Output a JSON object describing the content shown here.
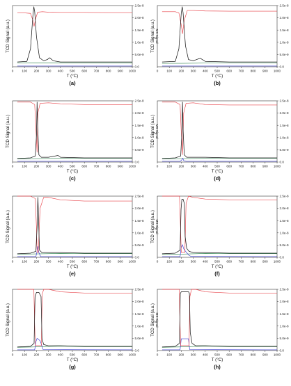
{
  "figure": {
    "panel_labels": [
      "(a)",
      "(b)",
      "(c)",
      "(d)",
      "(e)",
      "(f)",
      "(g)",
      "(h)"
    ]
  },
  "colors": {
    "tcd": "#1a1a1a",
    "ms_red": "#e8434a",
    "ms_green": "#3c8a5a",
    "ms_blue": "#3a3ad0",
    "axis": "#333333"
  },
  "chart_data": [
    {
      "panel": "(a)",
      "type": "line",
      "xlabel": "T (°C)",
      "ylabel": "TCD Signal (a.u.)",
      "y2label": "MS Signal",
      "xlim": [
        0,
        1000
      ],
      "y2lim": [
        0,
        2.5e-08
      ],
      "xticks": [
        "0",
        "100",
        "200",
        "300",
        "400",
        "500",
        "600",
        "700",
        "800",
        "900",
        "1000"
      ],
      "y2ticks": [
        "0.0",
        "5.0e-9",
        "1.0e-8",
        "1.5e-8",
        "2.0e-8",
        "2.5e-8"
      ],
      "series": [
        {
          "role": "TCD",
          "x": [
            40,
            120,
            150,
            170,
            178,
            185,
            200,
            225,
            260,
            290,
            310,
            340,
            400,
            600,
            800,
            1000
          ],
          "y": [
            0.08,
            0.09,
            0.3,
            0.85,
            1.0,
            0.92,
            0.5,
            0.15,
            0.1,
            0.12,
            0.15,
            0.1,
            0.08,
            0.08,
            0.08,
            0.08
          ]
        },
        {
          "role": "MS red",
          "x": [
            40,
            100,
            150,
            170,
            180,
            195,
            210,
            250,
            300,
            400,
            600,
            800,
            1000
          ],
          "y": [
            2.2e-08,
            2.2e-08,
            2.18e-08,
            1.9e-08,
            1.65e-08,
            2e-08,
            2.23e-08,
            2.25e-08,
            2.23e-08,
            2.22e-08,
            2.22e-08,
            2.21e-08,
            2.21e-08
          ]
        },
        {
          "role": "MS green",
          "x": [
            40,
            200,
            400,
            600,
            800,
            1000
          ],
          "y": [
            1.5e-09,
            1.6e-09,
            1.6e-09,
            1.6e-09,
            1.6e-09,
            1.6e-09
          ]
        },
        {
          "role": "MS blue",
          "x": [
            40,
            1000
          ],
          "y": [
            3e-10,
            3e-10
          ]
        }
      ]
    },
    {
      "panel": "(b)",
      "type": "line",
      "xlabel": "T (°C)",
      "ylabel": "TCD Signal (a.u.)",
      "y2label": "MS Signal",
      "xlim": [
        0,
        1000
      ],
      "y2lim": [
        0,
        2.5e-08
      ],
      "xticks": [
        "0",
        "100",
        "200",
        "300",
        "400",
        "500",
        "600",
        "700",
        "800",
        "900",
        "1000"
      ],
      "y2ticks": [
        "0.0",
        "5.0e-9",
        "1.0e-8",
        "1.5e-8",
        "2.0e-8",
        "2.5e-8"
      ],
      "series": [
        {
          "role": "TCD",
          "x": [
            40,
            150,
            180,
            200,
            208,
            215,
            235,
            260,
            300,
            340,
            360,
            400,
            600,
            800,
            1000
          ],
          "y": [
            0.08,
            0.09,
            0.3,
            0.9,
            1.0,
            0.9,
            0.35,
            0.12,
            0.1,
            0.13,
            0.14,
            0.09,
            0.08,
            0.08,
            0.08
          ]
        },
        {
          "role": "MS red",
          "x": [
            40,
            150,
            180,
            200,
            210,
            225,
            250,
            300,
            400,
            600,
            800,
            1000
          ],
          "y": [
            2.25e-08,
            2.25e-08,
            2.2e-08,
            1.7e-08,
            1.35e-08,
            1.9e-08,
            2.3e-08,
            2.3e-08,
            2.28e-08,
            2.27e-08,
            2.27e-08,
            2.27e-08
          ]
        },
        {
          "role": "MS green",
          "x": [
            40,
            200,
            400,
            600,
            800,
            1000
          ],
          "y": [
            1.4e-09,
            1.4e-09,
            1.5e-09,
            1.5e-09,
            1.5e-09,
            1.5e-09
          ]
        },
        {
          "role": "MS blue",
          "x": [
            40,
            1000
          ],
          "y": [
            3e-10,
            3e-10
          ]
        }
      ]
    },
    {
      "panel": "(c)",
      "type": "line",
      "xlabel": "T (°C)",
      "ylabel": "TCD Signal (a.u.)",
      "y2label": "MS Signal",
      "xlim": [
        0,
        1000
      ],
      "y2lim": [
        0,
        2.5e-08
      ],
      "xticks": [
        "0",
        "100",
        "200",
        "300",
        "400",
        "500",
        "600",
        "700",
        "800",
        "900",
        "1000"
      ],
      "y2ticks": [
        "0.0",
        "5.0e-9",
        "1.0e-8",
        "1.5e-8",
        "2.0e-8",
        "2.5e-8"
      ],
      "series": [
        {
          "role": "TCD",
          "x": [
            40,
            150,
            190,
            200,
            205,
            210,
            220,
            240,
            300,
            380,
            400,
            600,
            800,
            1000
          ],
          "y": [
            0.06,
            0.07,
            0.1,
            0.45,
            1.0,
            0.6,
            0.12,
            0.08,
            0.08,
            0.11,
            0.08,
            0.07,
            0.07,
            0.07
          ]
        },
        {
          "role": "MS red",
          "x": [
            40,
            150,
            185,
            200,
            205,
            212,
            230,
            300,
            400,
            600,
            800,
            1000
          ],
          "y": [
            2.45e-08,
            2.45e-08,
            2.35e-08,
            9e-09,
            4e-09,
            2e-08,
            2.4e-08,
            2.42e-08,
            2.38e-08,
            2.35e-08,
            2.35e-08,
            2.35e-08
          ]
        },
        {
          "role": "MS green",
          "x": [
            40,
            200,
            400,
            600,
            800,
            1000
          ],
          "y": [
            1.3e-09,
            1.4e-09,
            1.5e-09,
            1.5e-09,
            1.5e-09,
            1.5e-09
          ]
        },
        {
          "role": "MS blue",
          "x": [
            40,
            1000
          ],
          "y": [
            3e-10,
            3e-10
          ]
        }
      ]
    },
    {
      "panel": "(d)",
      "type": "line",
      "xlabel": "T (°C)",
      "ylabel": "TCD Signal (a.u.)",
      "y2label": "MS Signal",
      "xlim": [
        0,
        1000
      ],
      "y2lim": [
        0,
        2.5e-08
      ],
      "xticks": [
        "0",
        "100",
        "200",
        "300",
        "400",
        "500",
        "600",
        "700",
        "800",
        "900",
        "1000"
      ],
      "y2ticks": [
        "0.0",
        "5.0e-9",
        "1.0e-8",
        "1.5e-8",
        "2.0e-8",
        "2.5e-8"
      ],
      "series": [
        {
          "role": "TCD",
          "x": [
            40,
            150,
            195,
            205,
            210,
            215,
            225,
            245,
            300,
            400,
            600,
            800,
            1000
          ],
          "y": [
            0.06,
            0.07,
            0.1,
            0.5,
            1.0,
            0.55,
            0.12,
            0.08,
            0.08,
            0.08,
            0.07,
            0.07,
            0.07
          ]
        },
        {
          "role": "MS red",
          "x": [
            40,
            150,
            190,
            200,
            210,
            220,
            240,
            300,
            400,
            600,
            800,
            1000
          ],
          "y": [
            2.45e-08,
            2.45e-08,
            2.35e-08,
            1.2e-08,
            3e-09,
            2e-08,
            2.4e-08,
            2.42e-08,
            2.35e-08,
            2.33e-08,
            2.33e-08,
            2.33e-08
          ]
        },
        {
          "role": "MS green",
          "x": [
            40,
            200,
            400,
            600,
            800,
            1000
          ],
          "y": [
            1.3e-09,
            1.4e-09,
            1.5e-09,
            1.5e-09,
            1.5e-09,
            1.5e-09
          ]
        },
        {
          "role": "MS blue",
          "x": [
            40,
            190,
            205,
            212,
            220,
            240,
            1000
          ],
          "y": [
            3e-10,
            3e-10,
            9e-10,
            1.6e-09,
            6e-10,
            3e-10,
            3e-10
          ]
        }
      ]
    },
    {
      "panel": "(e)",
      "type": "line",
      "xlabel": "T (°C)",
      "ylabel": "TCD Signal (a.u.)",
      "y2label": "MS Signal",
      "xlim": [
        0,
        1000
      ],
      "y2lim": [
        0,
        2.5e-08
      ],
      "xticks": [
        "0",
        "100",
        "200",
        "300",
        "400",
        "500",
        "600",
        "700",
        "800",
        "900",
        "1000"
      ],
      "y2ticks": [
        "0.0",
        "5.0e-9",
        "1.0e-8",
        "1.5e-8",
        "2.0e-8",
        "2.5e-8"
      ],
      "series": [
        {
          "role": "TCD",
          "x": [
            40,
            150,
            195,
            205,
            212,
            218,
            225,
            245,
            300,
            400,
            600,
            800,
            1000
          ],
          "y": [
            0.06,
            0.07,
            0.1,
            0.5,
            1.0,
            0.6,
            0.12,
            0.08,
            0.08,
            0.08,
            0.07,
            0.07,
            0.07
          ]
        },
        {
          "role": "MS red",
          "x": [
            40,
            150,
            190,
            200,
            205,
            215,
            230,
            260,
            300,
            400,
            600,
            800,
            1000
          ],
          "y": [
            2.5e-08,
            2.5e-08,
            2.4e-08,
            1.2e-08,
            2e-09,
            2e-09,
            2e-08,
            2.45e-08,
            2.45e-08,
            2.35e-08,
            2.3e-08,
            2.3e-08,
            2.3e-08
          ]
        },
        {
          "role": "MS green",
          "x": [
            40,
            200,
            400,
            600,
            800,
            1000
          ],
          "y": [
            1.3e-09,
            1.4e-09,
            1.6e-09,
            1.5e-09,
            1.5e-09,
            1.5e-09
          ]
        },
        {
          "role": "MS blue",
          "x": [
            40,
            195,
            205,
            212,
            220,
            235,
            1000
          ],
          "y": [
            3e-10,
            3e-10,
            2.5e-09,
            4.5e-09,
            2e-09,
            3e-10,
            3e-10
          ]
        }
      ]
    },
    {
      "panel": "(f)",
      "type": "line",
      "xlabel": "T (°C)",
      "ylabel": "TCD Signal (a.u.)",
      "y2label": "MS Signal",
      "xlim": [
        0,
        1000
      ],
      "y2lim": [
        0,
        2.5e-08
      ],
      "xticks": [
        "0",
        "100",
        "200",
        "300",
        "400",
        "500",
        "600",
        "700",
        "800",
        "900",
        "1000"
      ],
      "y2ticks": [
        "0.0",
        "5.0e-9",
        "1.0e-8",
        "1.5e-8",
        "2.0e-8",
        "2.5e-8"
      ],
      "series": [
        {
          "role": "TCD",
          "x": [
            40,
            150,
            190,
            198,
            205,
            215,
            225,
            232,
            245,
            265,
            300,
            400,
            600,
            800,
            1000
          ],
          "y": [
            0.06,
            0.07,
            0.12,
            0.8,
            0.97,
            0.97,
            0.9,
            0.35,
            0.15,
            0.1,
            0.08,
            0.08,
            0.07,
            0.07,
            0.07
          ]
        },
        {
          "role": "MS red",
          "x": [
            40,
            150,
            185,
            195,
            200,
            230,
            240,
            260,
            300,
            400,
            600,
            800,
            1000
          ],
          "y": [
            2.6e-08,
            2.6e-08,
            2.5e-08,
            1e-08,
            2e-09,
            2e-09,
            2.2e-08,
            2.5e-08,
            2.45e-08,
            2.38e-08,
            2.35e-08,
            2.35e-08,
            2.35e-08
          ]
        },
        {
          "role": "MS green",
          "x": [
            40,
            200,
            400,
            600,
            800,
            1000
          ],
          "y": [
            1.2e-09,
            1.3e-09,
            1.6e-09,
            1.5e-09,
            1.5e-09,
            1.5e-09
          ]
        },
        {
          "role": "MS blue",
          "x": [
            40,
            190,
            200,
            210,
            220,
            240,
            260,
            280,
            1000
          ],
          "y": [
            3e-10,
            3e-10,
            4e-09,
            5.2e-09,
            3.5e-09,
            2.2e-09,
            1e-09,
            4e-10,
            3e-10
          ]
        }
      ]
    },
    {
      "panel": "(g)",
      "type": "line",
      "xlabel": "T (°C)",
      "ylabel": "TCD Signal (a.u.)",
      "y2label": "MS Signal",
      "xlim": [
        0,
        1000
      ],
      "y2lim": [
        0,
        2.5e-08
      ],
      "xticks": [
        "0",
        "100",
        "200",
        "300",
        "400",
        "500",
        "600",
        "700",
        "800",
        "900",
        "1000"
      ],
      "y2ticks": [
        "0.0",
        "5.0e-9",
        "1.0e-8",
        "1.5e-8",
        "2.0e-8",
        "2.5e-8"
      ],
      "series": [
        {
          "role": "TCD",
          "x": [
            40,
            150,
            180,
            188,
            200,
            220,
            238,
            246,
            260,
            300,
            400,
            600,
            800,
            1000
          ],
          "y": [
            0.06,
            0.07,
            0.12,
            0.9,
            0.97,
            0.97,
            0.9,
            0.2,
            0.1,
            0.08,
            0.08,
            0.07,
            0.07,
            0.07
          ]
        },
        {
          "role": "MS red",
          "x": [
            40,
            150,
            178,
            185,
            190,
            240,
            248,
            260,
            300,
            400,
            600,
            800,
            1000
          ],
          "y": [
            2.55e-08,
            2.55e-08,
            2.5e-08,
            1e-08,
            2e-09,
            2e-09,
            2.3e-08,
            2.6e-08,
            2.5e-08,
            2.4e-08,
            2.35e-08,
            2.35e-08,
            2.35e-08
          ]
        },
        {
          "role": "MS green",
          "x": [
            40,
            200,
            400,
            600,
            800,
            1000
          ],
          "y": [
            1.3e-09,
            1.5e-09,
            1.8e-09,
            1.6e-09,
            1.6e-09,
            1.6e-09
          ]
        },
        {
          "role": "MS blue",
          "x": [
            40,
            185,
            195,
            205,
            230,
            245,
            255,
            1000
          ],
          "y": [
            3e-10,
            3e-10,
            3.5e-09,
            5e-09,
            4e-09,
            2e-09,
            4e-10,
            3e-10
          ]
        }
      ]
    },
    {
      "panel": "(h)",
      "type": "line",
      "xlabel": "T (°C)",
      "ylabel": "TCD Signal (a.u.)",
      "y2label": "MS Signal",
      "xlim": [
        0,
        1000
      ],
      "y2lim": [
        0,
        2.5e-08
      ],
      "xticks": [
        "0",
        "100",
        "200",
        "300",
        "400",
        "500",
        "600",
        "700",
        "800",
        "900",
        "1000"
      ],
      "y2ticks": [
        "0.0",
        "5.0e-9",
        "1.0e-8",
        "1.5e-8",
        "2.0e-8",
        "2.5e-8"
      ],
      "series": [
        {
          "role": "TCD",
          "x": [
            40,
            150,
            185,
            192,
            200,
            260,
            268,
            275,
            290,
            320,
            400,
            600,
            800,
            1000
          ],
          "y": [
            0.06,
            0.07,
            0.12,
            0.95,
            0.98,
            0.98,
            0.95,
            0.3,
            0.12,
            0.08,
            0.08,
            0.07,
            0.07,
            0.07
          ]
        },
        {
          "role": "MS red",
          "x": [
            40,
            150,
            182,
            190,
            195,
            265,
            272,
            285,
            320,
            400,
            600,
            800,
            1000
          ],
          "y": [
            2.55e-08,
            2.55e-08,
            2.5e-08,
            1e-08,
            2e-09,
            2e-09,
            2.2e-08,
            2.55e-08,
            2.5e-08,
            2.4e-08,
            2.35e-08,
            2.35e-08,
            2.35e-08
          ]
        },
        {
          "role": "MS green",
          "x": [
            40,
            200,
            400,
            600,
            800,
            1000
          ],
          "y": [
            1.3e-09,
            1.5e-09,
            1.8e-09,
            1.6e-09,
            1.6e-09,
            1.6e-09
          ]
        },
        {
          "role": "MS blue",
          "x": [
            40,
            190,
            200,
            260,
            270,
            1000
          ],
          "y": [
            3e-10,
            3e-10,
            4.8e-09,
            4.8e-09,
            4e-10,
            3e-10
          ]
        }
      ]
    }
  ]
}
